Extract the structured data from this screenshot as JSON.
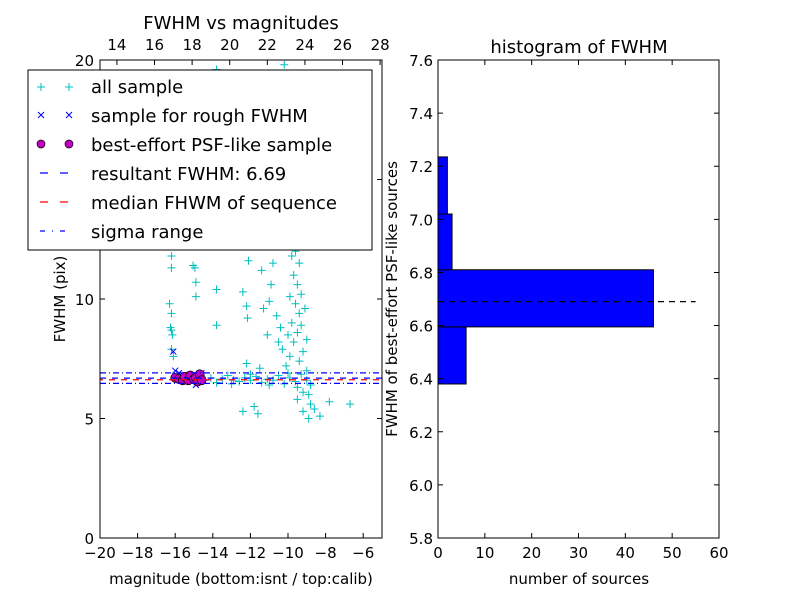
{
  "chart_data": [
    {
      "type": "scatter",
      "title": "FWHM vs magnitudes",
      "xlabel": "magnitude (bottom:isnt / top:calib)",
      "ylabel": "FWHM (pix)",
      "xlim": [
        -20,
        -5
      ],
      "ylim": [
        0,
        20
      ],
      "xticks": [
        -20,
        -18,
        -16,
        -14,
        -12,
        -10,
        -8,
        -6
      ],
      "xtick_labels": [
        "−20",
        "−18",
        "−16",
        "−14",
        "−12",
        "−10",
        "−8",
        "−6"
      ],
      "yticks": [
        0,
        5,
        10,
        15,
        20
      ],
      "ytick_labels": [
        "0",
        "5",
        "10",
        "15",
        "20"
      ],
      "top_axis": {
        "offset": 33.1,
        "ticks": [
          14,
          16,
          18,
          20,
          22,
          24,
          26,
          28
        ],
        "labels": [
          "14",
          "16",
          "18",
          "20",
          "22",
          "24",
          "26",
          "28"
        ]
      },
      "legend": {
        "placement": "upper-left",
        "entries": [
          "all sample",
          "sample for rough FWHM",
          "best-effort PSF-like sample",
          "resultant FWHM: 6.69",
          "median FHWM of sequence",
          "sigma range"
        ]
      },
      "colors": {
        "all": "#00bfbf",
        "rough": "#0000ff",
        "best": "#bf00bf",
        "result": "#0000ff",
        "median": "#ff0000",
        "sigma": "#0000ff"
      },
      "resultant_fwhm": 6.69,
      "median_fwhm": 6.62,
      "sigma_range": [
        6.47,
        6.91
      ],
      "all_sample": [
        [
          -13.8,
          19.6
        ],
        [
          -13.75,
          19.4
        ],
        [
          -12.1,
          19.4
        ],
        [
          -10.2,
          19.8
        ],
        [
          -16.2,
          11.8
        ],
        [
          -16.2,
          11.3
        ],
        [
          -16.3,
          9.8
        ],
        [
          -16.2,
          9.4
        ],
        [
          -16.25,
          8.8
        ],
        [
          -16.2,
          8.7
        ],
        [
          -16.15,
          8.5
        ],
        [
          -16.2,
          7.9
        ],
        [
          -16.1,
          7.6
        ],
        [
          -15.05,
          11.4
        ],
        [
          -14.95,
          11.3
        ],
        [
          -14.9,
          10.7
        ],
        [
          -14.9,
          10.1
        ],
        [
          -13.8,
          10.4
        ],
        [
          -13.8,
          8.9
        ],
        [
          -12.4,
          10.3
        ],
        [
          -12.2,
          9.7
        ],
        [
          -12.15,
          9.2
        ],
        [
          -12.1,
          11.6
        ],
        [
          -11.1,
          8.5
        ],
        [
          -11.3,
          9.6
        ],
        [
          -11.0,
          9.9
        ],
        [
          -10.9,
          10.6
        ],
        [
          -11.4,
          11.2
        ],
        [
          -10.8,
          11.5
        ],
        [
          -12.2,
          7.3
        ],
        [
          -11.5,
          7.1
        ],
        [
          -12.4,
          5.3
        ],
        [
          -11.8,
          5.5
        ],
        [
          -11.6,
          5.2
        ],
        [
          -6.7,
          5.6
        ],
        [
          -7.8,
          5.7
        ],
        [
          -8.3,
          5.1
        ],
        [
          -8.6,
          5.4
        ],
        [
          -8.9,
          5.0
        ],
        [
          -9.2,
          5.3
        ],
        [
          -9.5,
          5.8
        ],
        [
          -15.6,
          6.6
        ],
        [
          -15.3,
          6.7
        ],
        [
          -15.0,
          6.55
        ],
        [
          -14.7,
          6.75
        ],
        [
          -14.4,
          6.6
        ],
        [
          -14.1,
          6.7
        ],
        [
          -13.8,
          6.5
        ],
        [
          -13.5,
          6.65
        ],
        [
          -13.2,
          6.8
        ],
        [
          -12.9,
          6.6
        ],
        [
          -12.6,
          6.55
        ],
        [
          -12.3,
          6.7
        ],
        [
          -12.0,
          6.6
        ],
        [
          -11.7,
          6.75
        ],
        [
          -11.4,
          6.5
        ],
        [
          -11.1,
          6.65
        ],
        [
          -10.8,
          6.6
        ],
        [
          -10.5,
          6.8
        ],
        [
          -10.2,
          6.45
        ],
        [
          -9.9,
          6.7
        ],
        [
          -9.6,
          6.55
        ],
        [
          -9.3,
          6.85
        ],
        [
          -9.0,
          6.6
        ],
        [
          -8.8,
          6.4
        ],
        [
          -13.0,
          6.45
        ],
        [
          -12.0,
          6.85
        ],
        [
          -11.0,
          6.4
        ],
        [
          -10.0,
          6.9
        ],
        [
          -9.5,
          6.3
        ],
        [
          -9.2,
          6.1
        ],
        [
          -10.1,
          7.2
        ],
        [
          -9.9,
          7.6
        ],
        [
          -10.3,
          7.9
        ],
        [
          -9.7,
          8.2
        ],
        [
          -9.5,
          8.6
        ],
        [
          -9.8,
          9.0
        ],
        [
          -9.4,
          9.4
        ],
        [
          -9.6,
          9.8
        ],
        [
          -9.3,
          10.2
        ],
        [
          -9.5,
          10.6
        ],
        [
          -9.7,
          11.0
        ],
        [
          -9.4,
          11.5
        ],
        [
          -9.6,
          12.0
        ],
        [
          -9.5,
          12.5
        ],
        [
          -9.7,
          13.0
        ],
        [
          -9.6,
          14.2
        ],
        [
          -9.4,
          7.4
        ],
        [
          -9.2,
          7.8
        ],
        [
          -9.0,
          7.0
        ],
        [
          -8.9,
          6.0
        ],
        [
          -10.4,
          8.8
        ],
        [
          -10.6,
          9.3
        ],
        [
          -10.5,
          8.2
        ],
        [
          -10.0,
          8.5
        ],
        [
          -9.9,
          10.1
        ],
        [
          -9.8,
          11.8
        ],
        [
          -9.3,
          8.9
        ],
        [
          -9.1,
          9.6
        ],
        [
          -9.0,
          8.3
        ],
        [
          -8.8,
          5.6
        ]
      ],
      "rough_sample": [
        [
          -16.1,
          7.8
        ],
        [
          -16.0,
          7.0
        ],
        [
          -15.8,
          6.9
        ],
        [
          -14.9,
          6.4
        ],
        [
          -14.6,
          6.9
        ]
      ],
      "best_sample": [
        [
          -16.0,
          6.7
        ],
        [
          -15.8,
          6.65
        ],
        [
          -15.6,
          6.6
        ],
        [
          -15.5,
          6.75
        ],
        [
          -15.3,
          6.6
        ],
        [
          -15.2,
          6.8
        ],
        [
          -15.0,
          6.65
        ],
        [
          -14.9,
          6.7
        ],
        [
          -14.8,
          6.55
        ],
        [
          -14.7,
          6.85
        ],
        [
          -14.6,
          6.6
        ]
      ]
    },
    {
      "type": "bar",
      "orientation": "horizontal",
      "title": "histogram of FWHM",
      "xlabel": "number of sources",
      "ylabel": "FWHM of best-effort PSF-like sources",
      "xlim": [
        0,
        60
      ],
      "ylim": [
        5.8,
        7.6
      ],
      "xticks": [
        0,
        10,
        20,
        30,
        40,
        50,
        60
      ],
      "xtick_labels": [
        "0",
        "10",
        "20",
        "30",
        "40",
        "50",
        "60"
      ],
      "yticks": [
        5.8,
        6.0,
        6.2,
        6.4,
        6.6,
        6.8,
        7.0,
        7.2,
        7.4,
        7.6
      ],
      "ytick_labels": [
        "5.8",
        "6.0",
        "6.2",
        "6.4",
        "6.6",
        "6.8",
        "7.0",
        "7.2",
        "7.4",
        "7.6"
      ],
      "bin_edges": [
        6.38,
        6.595,
        6.81,
        7.02,
        7.235
      ],
      "counts": [
        6,
        46,
        3,
        2
      ],
      "bar_color": "#0000ff",
      "reference_line": {
        "value": 6.69,
        "extent": 55
      }
    }
  ]
}
